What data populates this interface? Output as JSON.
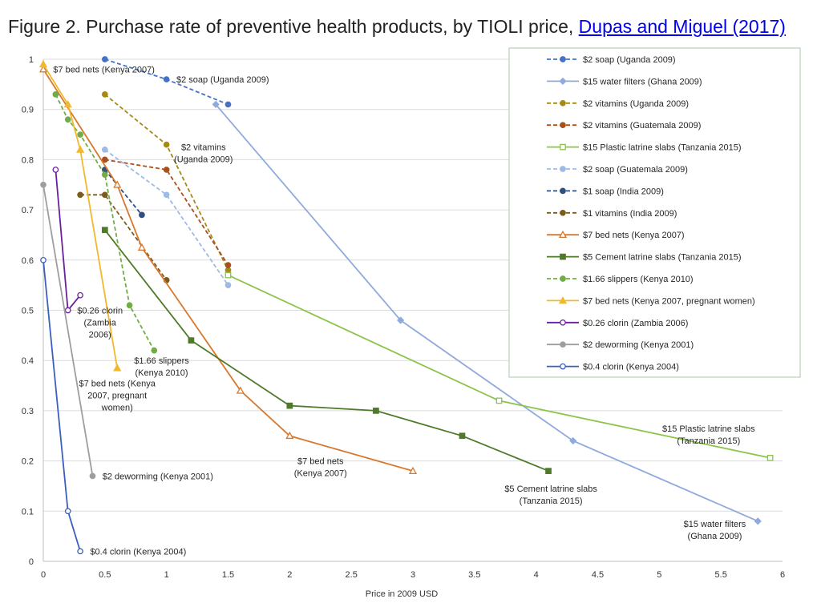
{
  "header": {
    "title_prefix": "Figure 2. Purchase rate of preventive health products, by TIOLI price, ",
    "citation_link": "Dupas and Miguel (2017)"
  },
  "chart_data": {
    "type": "line",
    "title": "Purchase rate of preventive health products, by TIOLI price",
    "xlabel": "Price in 2009 USD",
    "ylabel": "",
    "xlim": [
      0,
      6
    ],
    "ylim": [
      0,
      1
    ],
    "xticks": [
      0,
      0.5,
      1,
      1.5,
      2,
      2.5,
      3,
      3.5,
      4,
      4.5,
      5,
      5.5,
      6
    ],
    "xtick_labels": [
      "0",
      "0.5",
      "1",
      "1.5",
      "2",
      "2.5",
      "3",
      "3.5",
      "4",
      "4.5",
      "5",
      "5.5",
      "6"
    ],
    "yticks": [
      0,
      0.1,
      0.2,
      0.3,
      0.4,
      0.5,
      0.6,
      0.7,
      0.8,
      0.9,
      1
    ],
    "ytick_labels": [
      "0",
      "0.1",
      "0.2",
      "0.3",
      "0.4",
      "0.5",
      "0.6",
      "0.7",
      "0.8",
      "0.9",
      "1"
    ],
    "grid": "horizontal",
    "legend_position": "top-right",
    "series": [
      {
        "name": "$2 soap (Uganda 2009)",
        "color": "#4472c4",
        "dash": true,
        "marker": "circle",
        "fill": true,
        "x": [
          0.5,
          1,
          1.5
        ],
        "y": [
          1.0,
          0.96,
          0.91
        ]
      },
      {
        "name": "$15 water filters (Ghana 2009)",
        "color": "#8faadc",
        "dash": false,
        "marker": "diamond",
        "fill": true,
        "x": [
          1.4,
          2.9,
          4.3,
          5.8
        ],
        "y": [
          0.91,
          0.48,
          0.24,
          0.08
        ]
      },
      {
        "name": "$2 vitamins (Uganda 2009)",
        "color": "#a68a16",
        "dash": true,
        "marker": "circle",
        "fill": true,
        "x": [
          0.5,
          1,
          1.5
        ],
        "y": [
          0.93,
          0.83,
          0.58
        ]
      },
      {
        "name": "$2 vitamins (Guatemala 2009)",
        "color": "#a9501f",
        "dash": true,
        "marker": "circle",
        "fill": true,
        "x": [
          0.5,
          1,
          1.5
        ],
        "y": [
          0.8,
          0.78,
          0.59
        ]
      },
      {
        "name": "$15 Plastic latrine slabs (Tanzania 2015)",
        "color": "#8cc44a",
        "dash": false,
        "marker": "square",
        "fill": false,
        "x": [
          1.5,
          3.7,
          5.9
        ],
        "y": [
          0.57,
          0.32,
          0.206
        ]
      },
      {
        "name": "$2 soap (Guatemala 2009)",
        "color": "#9dbbe3",
        "dash": true,
        "marker": "circle",
        "fill": true,
        "x": [
          0.5,
          1,
          1.5
        ],
        "y": [
          0.82,
          0.73,
          0.55
        ]
      },
      {
        "name": "$1 soap (India 2009)",
        "color": "#2f4f80",
        "dash": true,
        "marker": "circle",
        "fill": true,
        "x": [
          0.5,
          0.8
        ],
        "y": [
          0.78,
          0.69
        ]
      },
      {
        "name": "$1 vitamins (India 2009)",
        "color": "#7a5c1c",
        "dash": true,
        "marker": "circle",
        "fill": true,
        "x": [
          0.3,
          0.5,
          1
        ],
        "y": [
          0.73,
          0.73,
          0.56
        ]
      },
      {
        "name": "$7 bed nets (Kenya 2007)",
        "color": "#d8782e",
        "dash": false,
        "marker": "triangle",
        "fill": false,
        "x": [
          0,
          0.6,
          0.8,
          1.6,
          2,
          3
        ],
        "y": [
          0.98,
          0.75,
          0.625,
          0.34,
          0.25,
          0.18
        ]
      },
      {
        "name": "$5 Cement latrine slabs (Tanzania 2015)",
        "color": "#4e7a2a",
        "dash": false,
        "marker": "square",
        "fill": true,
        "x": [
          0.5,
          1.2,
          2,
          2.7,
          3.4,
          4.1
        ],
        "y": [
          0.66,
          0.44,
          0.31,
          0.3,
          0.25,
          0.18
        ]
      },
      {
        "name": "$1.66 slippers (Kenya 2010)",
        "color": "#70ad47",
        "dash": true,
        "marker": "circle",
        "fill": true,
        "x": [
          0.1,
          0.2,
          0.3,
          0.5,
          0.7,
          0.9
        ],
        "y": [
          0.93,
          0.88,
          0.85,
          0.77,
          0.51,
          0.42
        ]
      },
      {
        "name": "$7 bed nets (Kenya 2007, pregnant women)",
        "color": "#f0b82d",
        "dash": false,
        "marker": "triangle",
        "fill": true,
        "x": [
          0,
          0.2,
          0.3,
          0.6
        ],
        "y": [
          0.99,
          0.91,
          0.82,
          0.385
        ]
      },
      {
        "name": "$0.26 clorin (Zambia 2006)",
        "color": "#6a1fa0",
        "dash": false,
        "marker": "circle",
        "fill": false,
        "x": [
          0.1,
          0.2,
          0.3
        ],
        "y": [
          0.78,
          0.5,
          0.53
        ]
      },
      {
        "name": "$2 deworming (Kenya 2001)",
        "color": "#9e9e9e",
        "dash": false,
        "marker": "circle",
        "fill": true,
        "x": [
          0,
          0.4
        ],
        "y": [
          0.75,
          0.17
        ]
      },
      {
        "name": "$0.4 clorin (Kenya 2004)",
        "color": "#3b5fc0",
        "dash": false,
        "marker": "circle",
        "fill": false,
        "x": [
          0,
          0.2,
          0.3
        ],
        "y": [
          0.6,
          0.1,
          0.02
        ]
      }
    ],
    "annotations": [
      {
        "id": "ann-bednets-top",
        "lines": [
          "$7 bed nets (Kenya 2007)"
        ],
        "x": 0.08,
        "y": 0.98,
        "anchor": "start"
      },
      {
        "id": "ann-soap-uganda",
        "lines": [
          "$2 soap (Uganda 2009)"
        ],
        "x": 1.08,
        "y": 0.96,
        "anchor": "start"
      },
      {
        "id": "ann-vitamins-uganda",
        "lines": [
          "$2 vitamins",
          "(Uganda 2009)"
        ],
        "x": 1.3,
        "y": 0.825,
        "anchor": "middle"
      },
      {
        "id": "ann-clorin-zambia",
        "lines": [
          "$0.26 clorin",
          "(Zambia",
          "2006)"
        ],
        "x": 0.46,
        "y": 0.5,
        "anchor": "middle"
      },
      {
        "id": "ann-slippers",
        "lines": [
          "$1.66 slippers",
          "(Kenya 2010)"
        ],
        "x": 0.96,
        "y": 0.4,
        "anchor": "middle"
      },
      {
        "id": "ann-bednets-pregnant",
        "lines": [
          "$7 bed nets (Kenya",
          "2007, pregnant",
          "women)"
        ],
        "x": 0.6,
        "y": 0.355,
        "anchor": "middle"
      },
      {
        "id": "ann-deworming",
        "lines": [
          "$2 deworming (Kenya 2001)"
        ],
        "x": 0.48,
        "y": 0.17,
        "anchor": "start"
      },
      {
        "id": "ann-clorin-kenya",
        "lines": [
          "$0.4 clorin (Kenya 2004)"
        ],
        "x": 0.38,
        "y": 0.02,
        "anchor": "start"
      },
      {
        "id": "ann-bednets-mid",
        "lines": [
          "$7 bed nets",
          "(Kenya 2007)"
        ],
        "x": 2.25,
        "y": 0.2,
        "anchor": "middle"
      },
      {
        "id": "ann-cement-slabs",
        "lines": [
          "$5 Cement latrine slabs",
          "(Tanzania 2015)"
        ],
        "x": 4.12,
        "y": 0.145,
        "anchor": "middle"
      },
      {
        "id": "ann-plastic-slabs",
        "lines": [
          "$15 Plastic latrine slabs",
          "(Tanzania 2015)"
        ],
        "x": 5.4,
        "y": 0.265,
        "anchor": "middle"
      },
      {
        "id": "ann-water-filters",
        "lines": [
          "$15 water filters",
          "(Ghana 2009)"
        ],
        "x": 5.45,
        "y": 0.075,
        "anchor": "middle"
      }
    ]
  }
}
